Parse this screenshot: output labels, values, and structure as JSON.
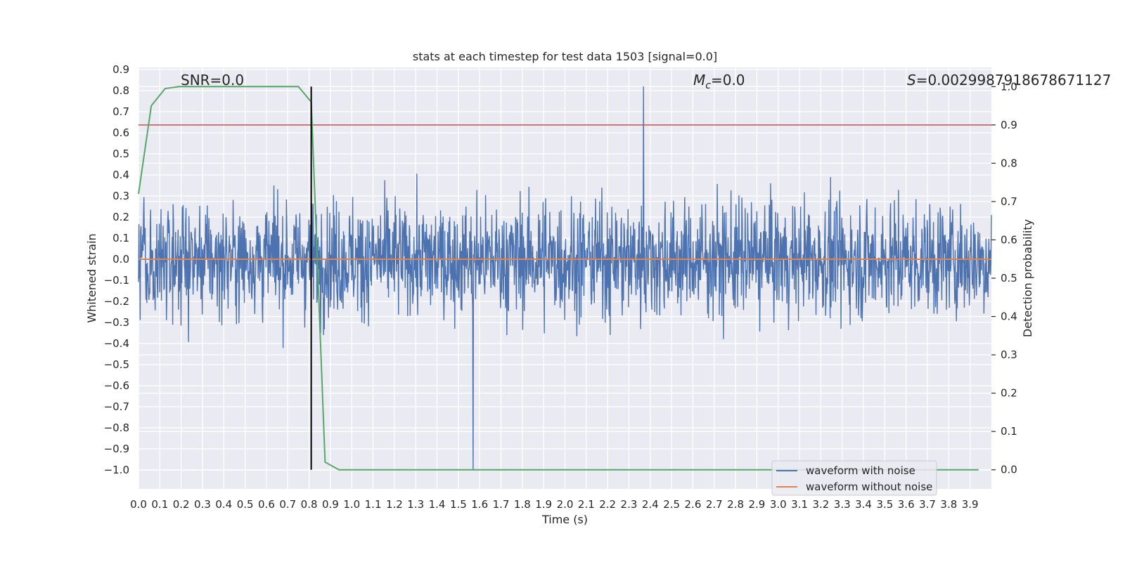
{
  "chart_data": {
    "type": "line",
    "title": "stats at each timestep for test data 1503 [signal=0.0]",
    "xlabel": "Time (s)",
    "ylabel_left": "Whitened strain",
    "ylabel_right": "Detection probability",
    "xlim": [
      0.0,
      4.0
    ],
    "ylim_left": [
      -1.09,
      0.91
    ],
    "ylim_right": [
      -0.05,
      1.05
    ],
    "xticks": [
      "0.0",
      "0.1",
      "0.2",
      "0.3",
      "0.4",
      "0.5",
      "0.6",
      "0.7",
      "0.8",
      "0.9",
      "1.0",
      "1.1",
      "1.2",
      "1.3",
      "1.4",
      "1.5",
      "1.6",
      "1.7",
      "1.8",
      "1.9",
      "2.0",
      "2.1",
      "2.2",
      "2.3",
      "2.4",
      "2.5",
      "2.6",
      "2.7",
      "2.8",
      "2.9",
      "3.0",
      "3.1",
      "3.2",
      "3.3",
      "3.4",
      "3.5",
      "3.6",
      "3.7",
      "3.8",
      "3.9"
    ],
    "yticks_left": [
      "0.9",
      "0.8",
      "0.7",
      "0.6",
      "0.5",
      "0.4",
      "0.3",
      "0.2",
      "0.1",
      "0.0",
      "−0.1",
      "−0.2",
      "−0.3",
      "−0.4",
      "−0.5",
      "−0.6",
      "−0.7",
      "−0.8",
      "−0.9",
      "−1.0"
    ],
    "yticks_right": [
      "1.0",
      "0.9",
      "0.8",
      "0.7",
      "0.6",
      "0.5",
      "0.4",
      "0.3",
      "0.2",
      "0.1",
      "0.0"
    ],
    "annotations": {
      "snr": "SNR=0.0",
      "mc_symbol": "M",
      "mc_sub": "c",
      "mc_value": "=0.0",
      "s_symbol": "S",
      "s_value": "=0.0029987918678671127"
    },
    "legend": {
      "location": "lower-right",
      "entries": [
        "waveform with noise",
        "waveform without noise"
      ]
    },
    "series": [
      {
        "name": "waveform with noise",
        "axis": "left",
        "color": "#4c72b0",
        "samples": 2048,
        "amplitude_typical": 0.27,
        "min": -1.0,
        "max": 0.82
      },
      {
        "name": "waveform without noise",
        "axis": "left",
        "color": "#dd8452",
        "x": [
          0.0,
          4.0
        ],
        "y": [
          0.0,
          0.0
        ]
      },
      {
        "name": "Detection probability",
        "axis": "right",
        "color": "#55a868",
        "x": [
          0.0,
          0.06,
          0.125,
          0.19,
          0.25,
          0.31,
          0.375,
          0.44,
          0.5,
          0.56,
          0.625,
          0.69,
          0.75,
          0.81,
          0.875,
          0.94,
          1.0,
          1.5,
          2.0,
          2.5,
          3.0,
          3.5,
          3.94
        ],
        "y": [
          0.72,
          0.95,
          0.995,
          1.0,
          1.0,
          1.0,
          1.0,
          1.0,
          1.0,
          1.0,
          1.0,
          1.0,
          1.0,
          0.96,
          0.02,
          0.0,
          0.0,
          0.0,
          0.0,
          0.0,
          0.0,
          0.0,
          0.0
        ]
      }
    ],
    "threshold": {
      "axis": "right",
      "value": 0.9,
      "color": "#c44e52"
    },
    "marker_time": {
      "value": 0.81,
      "color": "#000000"
    },
    "colors": {
      "background": "#eaeaf2",
      "grid": "#ffffff",
      "text": "#262626"
    }
  }
}
